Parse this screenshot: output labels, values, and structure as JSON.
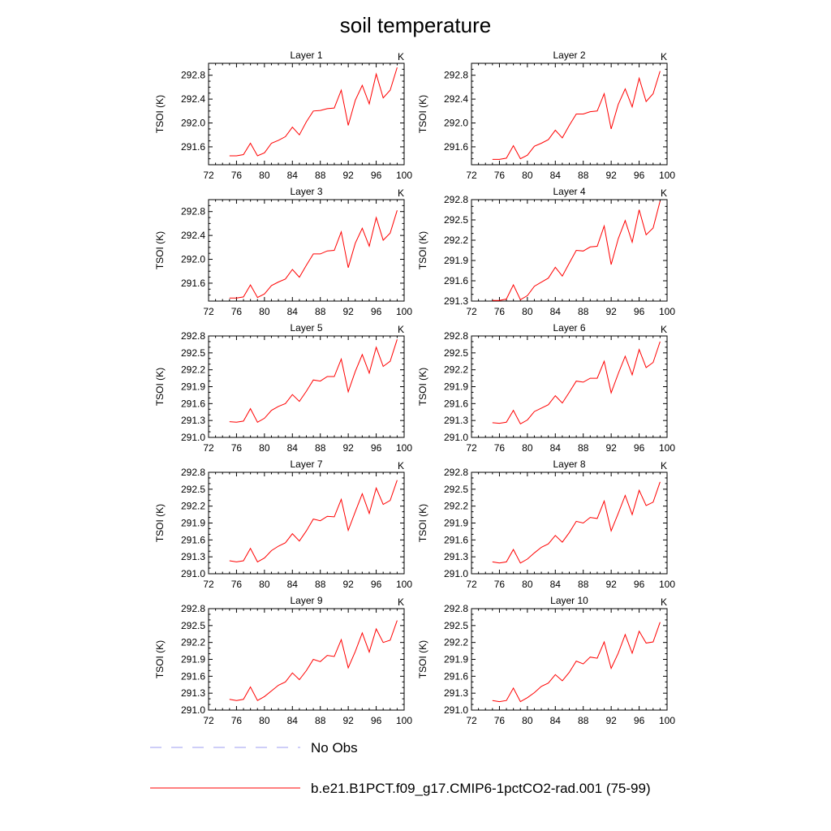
{
  "title": "soil temperature",
  "legend": [
    {
      "label": "No Obs",
      "color": "#9c9cf0",
      "dash": true
    },
    {
      "label": "b.e21.B1PCT.f09_g17.CMIP6-1pctCO2-rad.001 (75-99)",
      "color": "#ff0000",
      "dash": false
    }
  ],
  "chart_data": [
    {
      "type": "line",
      "title": "Layer 1",
      "ylabel": "TSOI  (K)",
      "units": "K",
      "xlim": [
        72,
        100
      ],
      "ylim": [
        291.3,
        293.0
      ],
      "xticks": [
        72,
        76,
        80,
        84,
        88,
        92,
        96,
        100
      ],
      "yticks": [
        291.6,
        292.0,
        292.4,
        292.8
      ],
      "ytick_labels": [
        "291.6",
        "292.0",
        "292.4",
        "292.8"
      ],
      "series": [
        {
          "color": "#ff0000",
          "x": [
            75,
            76,
            77,
            78,
            79,
            80,
            81,
            82,
            83,
            84,
            85,
            86,
            87,
            88,
            89,
            90,
            91,
            92,
            93,
            94,
            95,
            96,
            97,
            98,
            99
          ],
          "y": [
            291.45,
            291.45,
            291.47,
            291.66,
            291.45,
            291.5,
            291.66,
            291.71,
            291.77,
            291.93,
            291.8,
            292.02,
            292.2,
            292.21,
            292.24,
            292.25,
            292.55,
            291.96,
            292.38,
            292.63,
            292.32,
            292.82,
            292.42,
            292.55,
            292.93
          ]
        }
      ]
    },
    {
      "type": "line",
      "title": "Layer 2",
      "ylabel": "TSOI  (K)",
      "units": "K",
      "xlim": [
        72,
        100
      ],
      "ylim": [
        291.3,
        293.0
      ],
      "xticks": [
        72,
        76,
        80,
        84,
        88,
        92,
        96,
        100
      ],
      "yticks": [
        291.6,
        292.0,
        292.4,
        292.8
      ],
      "ytick_labels": [
        "291.6",
        "292.0",
        "292.4",
        "292.8"
      ],
      "series": [
        {
          "color": "#ff0000",
          "x": [
            75,
            76,
            77,
            78,
            79,
            80,
            81,
            82,
            83,
            84,
            85,
            86,
            87,
            88,
            89,
            90,
            91,
            92,
            93,
            94,
            95,
            96,
            97,
            98,
            99
          ],
          "y": [
            291.39,
            291.39,
            291.41,
            291.62,
            291.4,
            291.46,
            291.61,
            291.66,
            291.72,
            291.88,
            291.75,
            291.96,
            292.15,
            292.15,
            292.19,
            292.2,
            292.49,
            291.9,
            292.31,
            292.57,
            292.27,
            292.75,
            292.36,
            292.49,
            292.87
          ]
        }
      ]
    },
    {
      "type": "line",
      "title": "Layer 3",
      "ylabel": "TSOI  (K)",
      "units": "K",
      "xlim": [
        72,
        100
      ],
      "ylim": [
        291.3,
        293.0
      ],
      "xticks": [
        72,
        76,
        80,
        84,
        88,
        92,
        96,
        100
      ],
      "yticks": [
        291.6,
        292.0,
        292.4,
        292.8
      ],
      "ytick_labels": [
        "291.6",
        "292.0",
        "292.4",
        "292.8"
      ],
      "series": [
        {
          "color": "#ff0000",
          "x": [
            75,
            76,
            77,
            78,
            79,
            80,
            81,
            82,
            83,
            84,
            85,
            86,
            87,
            88,
            89,
            90,
            91,
            92,
            93,
            94,
            95,
            96,
            97,
            98,
            99
          ],
          "y": [
            291.35,
            291.35,
            291.37,
            291.57,
            291.36,
            291.42,
            291.56,
            291.62,
            291.67,
            291.83,
            291.7,
            291.9,
            292.09,
            292.09,
            292.14,
            292.15,
            292.46,
            291.86,
            292.27,
            292.52,
            292.22,
            292.7,
            292.32,
            292.44,
            292.82
          ]
        }
      ]
    },
    {
      "type": "line",
      "title": "Layer 4",
      "ylabel": "TSOI  (K)",
      "units": "K",
      "xlim": [
        72,
        100
      ],
      "ylim": [
        291.3,
        292.8
      ],
      "xticks": [
        72,
        76,
        80,
        84,
        88,
        92,
        96,
        100
      ],
      "yticks": [
        291.3,
        291.6,
        291.9,
        292.2,
        292.5,
        292.8
      ],
      "ytick_labels": [
        "291.3",
        "291.6",
        "291.9",
        "292.2",
        "292.5",
        "292.8"
      ],
      "series": [
        {
          "color": "#ff0000",
          "x": [
            75,
            76,
            77,
            78,
            79,
            80,
            81,
            82,
            83,
            84,
            85,
            86,
            87,
            88,
            89,
            90,
            91,
            92,
            93,
            94,
            95,
            96,
            97,
            98,
            99
          ],
          "y": [
            291.31,
            291.31,
            291.33,
            291.54,
            291.32,
            291.38,
            291.52,
            291.58,
            291.64,
            291.8,
            291.67,
            291.86,
            292.05,
            292.04,
            292.1,
            292.11,
            292.41,
            291.84,
            292.22,
            292.49,
            292.17,
            292.65,
            292.28,
            292.38,
            292.78
          ]
        }
      ]
    },
    {
      "type": "line",
      "title": "Layer 5",
      "ylabel": "TSOI  (K)",
      "units": "K",
      "xlim": [
        72,
        100
      ],
      "ylim": [
        291.0,
        292.8
      ],
      "xticks": [
        72,
        76,
        80,
        84,
        88,
        92,
        96,
        100
      ],
      "yticks": [
        291.0,
        291.3,
        291.6,
        291.9,
        292.2,
        292.5,
        292.8
      ],
      "ytick_labels": [
        "291.0",
        "291.3",
        "291.6",
        "291.9",
        "292.2",
        "292.5",
        "292.8"
      ],
      "series": [
        {
          "color": "#ff0000",
          "x": [
            75,
            76,
            77,
            78,
            79,
            80,
            81,
            82,
            83,
            84,
            85,
            86,
            87,
            88,
            89,
            90,
            91,
            92,
            93,
            94,
            95,
            96,
            97,
            98,
            99
          ],
          "y": [
            291.28,
            291.27,
            291.29,
            291.51,
            291.27,
            291.34,
            291.48,
            291.55,
            291.6,
            291.76,
            291.64,
            291.82,
            292.02,
            292.0,
            292.08,
            292.08,
            292.39,
            291.81,
            292.17,
            292.47,
            292.14,
            292.6,
            292.26,
            292.35,
            292.74
          ]
        }
      ]
    },
    {
      "type": "line",
      "title": "Layer 6",
      "ylabel": "TSOI  (K)",
      "units": "K",
      "xlim": [
        72,
        100
      ],
      "ylim": [
        291.0,
        292.8
      ],
      "xticks": [
        72,
        76,
        80,
        84,
        88,
        92,
        96,
        100
      ],
      "yticks": [
        291.0,
        291.3,
        291.6,
        291.9,
        292.2,
        292.5,
        292.8
      ],
      "ytick_labels": [
        "291.0",
        "291.3",
        "291.6",
        "291.9",
        "292.2",
        "292.5",
        "292.8"
      ],
      "series": [
        {
          "color": "#ff0000",
          "x": [
            75,
            76,
            77,
            78,
            79,
            80,
            81,
            82,
            83,
            84,
            85,
            86,
            87,
            88,
            89,
            90,
            91,
            92,
            93,
            94,
            95,
            96,
            97,
            98,
            99
          ],
          "y": [
            291.26,
            291.25,
            291.27,
            291.48,
            291.24,
            291.31,
            291.46,
            291.52,
            291.58,
            291.74,
            291.61,
            291.8,
            292.0,
            291.98,
            292.05,
            292.05,
            292.35,
            291.79,
            292.13,
            292.44,
            292.11,
            292.56,
            292.24,
            292.33,
            292.7
          ]
        }
      ]
    },
    {
      "type": "line",
      "title": "Layer 7",
      "ylabel": "TSOI  (K)",
      "units": "K",
      "xlim": [
        72,
        100
      ],
      "ylim": [
        291.0,
        292.8
      ],
      "xticks": [
        72,
        76,
        80,
        84,
        88,
        92,
        96,
        100
      ],
      "yticks": [
        291.0,
        291.3,
        291.6,
        291.9,
        292.2,
        292.5,
        292.8
      ],
      "ytick_labels": [
        "291.0",
        "291.3",
        "291.6",
        "291.9",
        "292.2",
        "292.5",
        "292.8"
      ],
      "series": [
        {
          "color": "#ff0000",
          "x": [
            75,
            76,
            77,
            78,
            79,
            80,
            81,
            82,
            83,
            84,
            85,
            86,
            87,
            88,
            89,
            90,
            91,
            92,
            93,
            94,
            95,
            96,
            97,
            98,
            99
          ],
          "y": [
            291.23,
            291.21,
            291.23,
            291.45,
            291.21,
            291.28,
            291.41,
            291.49,
            291.55,
            291.71,
            291.58,
            291.76,
            291.97,
            291.94,
            292.02,
            292.01,
            292.32,
            291.77,
            292.1,
            292.42,
            292.07,
            292.52,
            292.23,
            292.3,
            292.66
          ]
        }
      ]
    },
    {
      "type": "line",
      "title": "Layer 8",
      "ylabel": "TSOI  (K)",
      "units": "K",
      "xlim": [
        72,
        100
      ],
      "ylim": [
        291.0,
        292.8
      ],
      "xticks": [
        72,
        76,
        80,
        84,
        88,
        92,
        96,
        100
      ],
      "yticks": [
        291.0,
        291.3,
        291.6,
        291.9,
        292.2,
        292.5,
        292.8
      ],
      "ytick_labels": [
        "291.0",
        "291.3",
        "291.6",
        "291.9",
        "292.2",
        "292.5",
        "292.8"
      ],
      "series": [
        {
          "color": "#ff0000",
          "x": [
            75,
            76,
            77,
            78,
            79,
            80,
            81,
            82,
            83,
            84,
            85,
            86,
            87,
            88,
            89,
            90,
            91,
            92,
            93,
            94,
            95,
            96,
            97,
            98,
            99
          ],
          "y": [
            291.21,
            291.19,
            291.21,
            291.43,
            291.19,
            291.26,
            291.37,
            291.47,
            291.53,
            291.68,
            291.56,
            291.73,
            291.93,
            291.9,
            292.0,
            291.98,
            292.29,
            291.76,
            292.07,
            292.39,
            292.05,
            292.48,
            292.21,
            292.27,
            292.63
          ]
        }
      ]
    },
    {
      "type": "line",
      "title": "Layer 9",
      "ylabel": "TSOI  (K)",
      "units": "K",
      "xlim": [
        72,
        100
      ],
      "ylim": [
        291.0,
        292.8
      ],
      "xticks": [
        72,
        76,
        80,
        84,
        88,
        92,
        96,
        100
      ],
      "yticks": [
        291.0,
        291.3,
        291.6,
        291.9,
        292.2,
        292.5,
        292.8
      ],
      "ytick_labels": [
        "291.0",
        "291.3",
        "291.6",
        "291.9",
        "292.2",
        "292.5",
        "292.8"
      ],
      "series": [
        {
          "color": "#ff0000",
          "x": [
            75,
            76,
            77,
            78,
            79,
            80,
            81,
            82,
            83,
            84,
            85,
            86,
            87,
            88,
            89,
            90,
            91,
            92,
            93,
            94,
            95,
            96,
            97,
            98,
            99
          ],
          "y": [
            291.19,
            291.17,
            291.19,
            291.41,
            291.17,
            291.24,
            291.34,
            291.44,
            291.5,
            291.66,
            291.54,
            291.7,
            291.9,
            291.86,
            291.97,
            291.95,
            292.25,
            291.75,
            292.04,
            292.37,
            292.03,
            292.44,
            292.2,
            292.24,
            292.59
          ]
        }
      ]
    },
    {
      "type": "line",
      "title": "Layer 10",
      "ylabel": "TSOI  (K)",
      "units": "K",
      "xlim": [
        72,
        100
      ],
      "ylim": [
        291.0,
        292.8
      ],
      "xticks": [
        72,
        76,
        80,
        84,
        88,
        92,
        96,
        100
      ],
      "yticks": [
        291.0,
        291.3,
        291.6,
        291.9,
        292.2,
        292.5,
        292.8
      ],
      "ytick_labels": [
        "291.0",
        "291.3",
        "291.6",
        "291.9",
        "292.2",
        "292.5",
        "292.8"
      ],
      "series": [
        {
          "color": "#ff0000",
          "x": [
            75,
            76,
            77,
            78,
            79,
            80,
            81,
            82,
            83,
            84,
            85,
            86,
            87,
            88,
            89,
            90,
            91,
            92,
            93,
            94,
            95,
            96,
            97,
            98,
            99
          ],
          "y": [
            291.17,
            291.15,
            291.17,
            291.39,
            291.15,
            291.22,
            291.31,
            291.42,
            291.48,
            291.63,
            291.52,
            291.67,
            291.87,
            291.82,
            291.94,
            291.92,
            292.21,
            291.74,
            292.01,
            292.34,
            292.01,
            292.4,
            292.19,
            292.21,
            292.56
          ]
        }
      ]
    }
  ]
}
